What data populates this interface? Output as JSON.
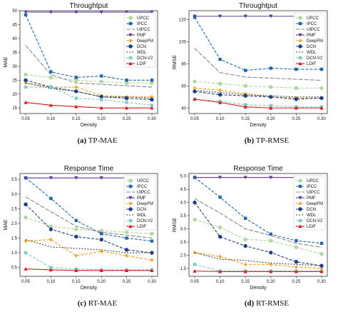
{
  "chart_data": [
    {
      "type": "line",
      "title": "Throughtput",
      "xlabel": "Density",
      "ylabel": "MAE",
      "caption_letter": "(a)",
      "caption_text": " TP-MAE",
      "x": [
        0.05,
        0.1,
        0.15,
        0.2,
        0.25,
        0.3
      ],
      "xticks": [
        "0.05",
        "0.10",
        "0.15",
        "0.20",
        "0.25",
        "0.30"
      ],
      "ylim": [
        13,
        50
      ],
      "yticks": [
        15,
        20,
        25,
        30,
        35,
        40,
        45,
        50
      ],
      "legend_position": "top-right",
      "series": [
        {
          "name": "UPCC",
          "color": "#b0d8a0",
          "dash": "4,2",
          "marker": "circle",
          "values": [
            27.0,
            26.0,
            25.0,
            24.5,
            24.0,
            24.0
          ]
        },
        {
          "name": "IPCC",
          "color": "#2166ac",
          "dash": "4,2",
          "marker": "square",
          "values": [
            48.5,
            28.0,
            26.0,
            26.5,
            25.0,
            25.0
          ]
        },
        {
          "name": "UIPCC",
          "color": "#888888",
          "dash": "6,2",
          "marker": "none",
          "values": [
            37.5,
            27.0,
            24.0,
            23.5,
            23.0,
            22.5
          ]
        },
        {
          "name": "PMF",
          "color": "#5e3c99",
          "dash": "",
          "marker": "triangle-down",
          "values": [
            49.5,
            49.5,
            49.5,
            49.5,
            49.5,
            49.5
          ]
        },
        {
          "name": "DeepFM",
          "color": "#f4a020",
          "dash": "4,2",
          "marker": "diamond",
          "values": [
            24.0,
            22.5,
            22.5,
            19.5,
            19.0,
            19.0
          ]
        },
        {
          "name": "DCN",
          "color": "#1f3e8a",
          "dash": "4,2",
          "marker": "circle",
          "values": [
            25.0,
            22.5,
            21.0,
            19.0,
            18.5,
            18.0
          ]
        },
        {
          "name": "WDL",
          "color": "#444444",
          "dash": "2,2",
          "marker": "none",
          "values": [
            24.0,
            22.0,
            21.0,
            19.0,
            19.0,
            18.5
          ]
        },
        {
          "name": "DCN-V2",
          "color": "#80cdc1",
          "dash": "4,2",
          "marker": "square",
          "values": [
            22.5,
            22.5,
            18.5,
            18.0,
            17.0,
            16.0
          ]
        },
        {
          "name": "LDIF",
          "color": "#d7191c",
          "dash": "",
          "marker": "triangle-up",
          "values": [
            17.0,
            16.0,
            15.5,
            15.0,
            15.0,
            15.0
          ]
        }
      ]
    },
    {
      "type": "line",
      "title": "Throughtput",
      "xlabel": "Density",
      "ylabel": "RMSE",
      "caption_letter": "(b)",
      "caption_text": " TP-RMSE",
      "x": [
        0.05,
        0.1,
        0.15,
        0.2,
        0.25,
        0.3
      ],
      "xticks": [
        "0.05",
        "0.10",
        "0.15",
        "0.20",
        "0.25",
        "0.30"
      ],
      "ylim": [
        35,
        128
      ],
      "yticks": [
        40,
        60,
        80,
        100,
        120
      ],
      "legend_position": "top-right",
      "series": [
        {
          "name": "UPCC",
          "color": "#b0d8a0",
          "dash": "4,2",
          "marker": "circle",
          "values": [
            64.0,
            62.0,
            60.0,
            59.0,
            58.0,
            58.0
          ]
        },
        {
          "name": "IPCC",
          "color": "#2166ac",
          "dash": "4,2",
          "marker": "square",
          "values": [
            122.0,
            84.0,
            74.0,
            76.0,
            75.0,
            75.0
          ]
        },
        {
          "name": "UIPCC",
          "color": "#888888",
          "dash": "6,2",
          "marker": "none",
          "values": [
            94.0,
            72.0,
            68.0,
            67.0,
            66.0,
            65.0
          ]
        },
        {
          "name": "PMF",
          "color": "#5e3c99",
          "dash": "",
          "marker": "triangle-down",
          "values": [
            123.0,
            123.0,
            123.0,
            123.0,
            123.0,
            123.0
          ]
        },
        {
          "name": "DeepFM",
          "color": "#f4a020",
          "dash": "4,2",
          "marker": "diamond",
          "values": [
            58.0,
            56.0,
            53.0,
            50.0,
            49.0,
            49.0
          ]
        },
        {
          "name": "DCN",
          "color": "#1f3e8a",
          "dash": "4,2",
          "marker": "circle",
          "values": [
            55.0,
            52.0,
            51.0,
            50.0,
            48.0,
            49.0
          ]
        },
        {
          "name": "WDL",
          "color": "#444444",
          "dash": "2,2",
          "marker": "none",
          "values": [
            56.0,
            54.0,
            52.0,
            51.0,
            50.0,
            50.0
          ]
        },
        {
          "name": "DCN-V2",
          "color": "#80cdc1",
          "dash": "4,2",
          "marker": "square",
          "values": [
            48.0,
            46.0,
            43.0,
            42.0,
            41.0,
            41.0
          ]
        },
        {
          "name": "LDIF",
          "color": "#d7191c",
          "dash": "",
          "marker": "triangle-up",
          "values": [
            48.0,
            45.0,
            41.0,
            40.0,
            40.0,
            40.0
          ]
        }
      ]
    },
    {
      "type": "line",
      "title": "Response Time",
      "xlabel": "Density",
      "ylabel": "MAE",
      "caption_letter": "(c)",
      "caption_text": " RT-MAE",
      "x": [
        0.05,
        0.1,
        0.15,
        0.2,
        0.25,
        0.3
      ],
      "xticks": [
        "0.05",
        "0.10",
        "0.15",
        "0.20",
        "0.25",
        "0.30"
      ],
      "ylim": [
        0.2,
        3.7
      ],
      "yticks": [
        0.5,
        1.0,
        1.5,
        2.0,
        2.5,
        3.0,
        3.5
      ],
      "legend_position": "top-right",
      "series": [
        {
          "name": "UPCC",
          "color": "#b0d8a0",
          "dash": "4,2",
          "marker": "circle",
          "values": [
            2.2,
            1.9,
            1.8,
            1.75,
            1.7,
            1.65
          ]
        },
        {
          "name": "IPCC",
          "color": "#2166ac",
          "dash": "4,2",
          "marker": "square",
          "values": [
            3.55,
            2.85,
            2.1,
            1.65,
            1.5,
            1.4
          ]
        },
        {
          "name": "UIPCC",
          "color": "#888888",
          "dash": "6,2",
          "marker": "none",
          "values": [
            2.9,
            2.4,
            1.9,
            1.7,
            1.6,
            1.5
          ]
        },
        {
          "name": "PMF",
          "color": "#5e3c99",
          "dash": "",
          "marker": "triangle-down",
          "values": [
            3.55,
            3.55,
            3.55,
            3.55,
            3.55,
            3.55
          ]
        },
        {
          "name": "DeepFM",
          "color": "#f4a020",
          "dash": "4,2",
          "marker": "diamond",
          "values": [
            1.4,
            1.45,
            0.9,
            1.05,
            0.9,
            0.75
          ]
        },
        {
          "name": "DCN",
          "color": "#1f3e8a",
          "dash": "4,2",
          "marker": "circle",
          "values": [
            2.65,
            1.8,
            1.55,
            1.45,
            1.1,
            1.0
          ]
        },
        {
          "name": "WDL",
          "color": "#444444",
          "dash": "2,2",
          "marker": "none",
          "values": [
            1.45,
            1.2,
            1.15,
            1.1,
            1.0,
            1.0
          ]
        },
        {
          "name": "DCN-V2",
          "color": "#80cdc1",
          "dash": "4,2",
          "marker": "square",
          "values": [
            1.0,
            0.5,
            0.45,
            0.42,
            0.42,
            0.42
          ]
        },
        {
          "name": "LDIF",
          "color": "#d7191c",
          "dash": "",
          "marker": "triangle-up",
          "values": [
            0.45,
            0.42,
            0.4,
            0.4,
            0.4,
            0.4
          ]
        }
      ]
    },
    {
      "type": "line",
      "title": "Response Time",
      "xlabel": "Density",
      "ylabel": "RMSE",
      "caption_letter": "(d)",
      "caption_text": " RT-RMSE",
      "x": [
        0.05,
        0.1,
        0.15,
        0.2,
        0.25,
        0.3
      ],
      "xticks": [
        "0.05",
        "0.10",
        "0.15",
        "0.20",
        "0.25",
        "0.30"
      ],
      "ylim": [
        1.2,
        5.1
      ],
      "yticks": [
        1.5,
        2.0,
        2.5,
        3.0,
        3.5,
        4.0,
        4.5,
        5.0
      ],
      "legend_position": "top-right",
      "series": [
        {
          "name": "UPCC",
          "color": "#b0d8a0",
          "dash": "4,2",
          "marker": "circle",
          "values": [
            3.35,
            3.05,
            2.6,
            2.55,
            2.3,
            2.05
          ]
        },
        {
          "name": "IPCC",
          "color": "#2166ac",
          "dash": "4,2",
          "marker": "square",
          "values": [
            4.95,
            4.2,
            3.4,
            2.8,
            2.55,
            2.45
          ]
        },
        {
          "name": "UIPCC",
          "color": "#888888",
          "dash": "6,2",
          "marker": "none",
          "values": [
            4.15,
            3.6,
            3.0,
            2.75,
            2.45,
            2.3
          ]
        },
        {
          "name": "PMF",
          "color": "#5e3c99",
          "dash": "",
          "marker": "triangle-down",
          "values": [
            4.95,
            4.95,
            4.95,
            4.95,
            4.95,
            4.95
          ]
        },
        {
          "name": "DeepFM",
          "color": "#f4a020",
          "dash": "4,2",
          "marker": "diamond",
          "values": [
            2.1,
            1.95,
            1.65,
            1.65,
            1.55,
            1.5
          ]
        },
        {
          "name": "DCN",
          "color": "#1f3e8a",
          "dash": "4,2",
          "marker": "circle",
          "values": [
            4.0,
            2.7,
            2.35,
            2.1,
            1.75,
            1.6
          ]
        },
        {
          "name": "WDL",
          "color": "#444444",
          "dash": "2,2",
          "marker": "none",
          "values": [
            2.1,
            1.85,
            1.8,
            1.7,
            1.65,
            1.6
          ]
        },
        {
          "name": "DCN-V2",
          "color": "#80cdc1",
          "dash": "4,2",
          "marker": "square",
          "values": [
            1.65,
            1.4,
            1.4,
            1.4,
            1.4,
            1.4
          ]
        },
        {
          "name": "LDIF",
          "color": "#d7191c",
          "dash": "",
          "marker": "triangle-up",
          "values": [
            1.4,
            1.38,
            1.38,
            1.38,
            1.38,
            1.38
          ]
        }
      ]
    }
  ]
}
